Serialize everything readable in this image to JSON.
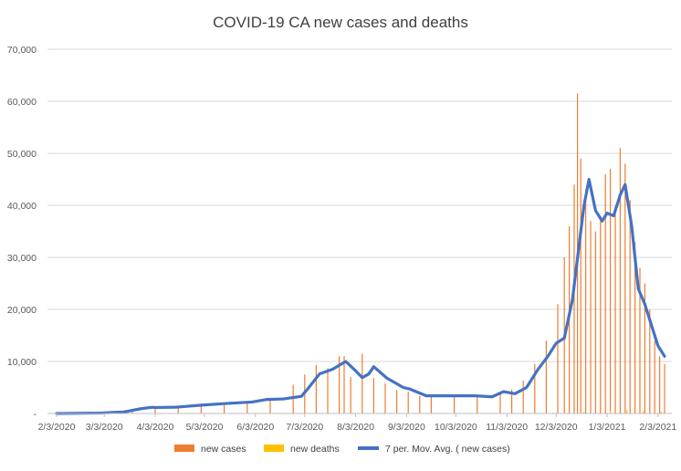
{
  "chart_data": {
    "type": "bar",
    "title": "COVID-19 CA new cases and deaths",
    "xlabel": "",
    "ylabel": "",
    "ylim": [
      0,
      70000
    ],
    "y_ticks": [
      "-",
      "10,000",
      "20,000",
      "30,000",
      "40,000",
      "50,000",
      "60,000",
      "70,000"
    ],
    "y_tick_values": [
      0,
      10000,
      20000,
      30000,
      40000,
      50000,
      60000,
      70000
    ],
    "x_tick_labels": [
      "2/3/2020",
      "3/3/2020",
      "4/3/2020",
      "5/3/2020",
      "6/3/2020",
      "7/3/2020",
      "8/3/2020",
      "9/3/2020",
      "10/3/2020",
      "11/3/2020",
      "12/3/2020",
      "1/3/2021",
      "2/3/2021"
    ],
    "x_tick_dates": [
      "2020-02-03",
      "2020-03-03",
      "2020-04-03",
      "2020-05-03",
      "2020-06-03",
      "2020-07-03",
      "2020-08-03",
      "2020-09-03",
      "2020-10-03",
      "2020-11-03",
      "2020-12-03",
      "2021-01-03",
      "2021-02-03"
    ],
    "x_range": [
      "2020-02-03",
      "2021-02-07"
    ],
    "grid": true,
    "legend_position": "bottom",
    "series": [
      {
        "name": "new cases",
        "type": "bar",
        "color": "#ED7D31",
        "x": [
          "2020-03-20",
          "2020-04-03",
          "2020-04-17",
          "2020-05-01",
          "2020-05-15",
          "2020-05-29",
          "2020-06-12",
          "2020-06-26",
          "2020-07-03",
          "2020-07-10",
          "2020-07-17",
          "2020-07-24",
          "2020-07-27",
          "2020-07-31",
          "2020-08-07",
          "2020-08-14",
          "2020-08-21",
          "2020-08-28",
          "2020-09-04",
          "2020-09-11",
          "2020-09-18",
          "2020-10-02",
          "2020-10-16",
          "2020-10-30",
          "2020-11-06",
          "2020-11-13",
          "2020-11-20",
          "2020-11-27",
          "2020-12-04",
          "2020-12-08",
          "2020-12-11",
          "2020-12-14",
          "2020-12-16",
          "2020-12-18",
          "2020-12-21",
          "2020-12-24",
          "2020-12-27",
          "2020-12-30",
          "2021-01-02",
          "2021-01-05",
          "2021-01-08",
          "2021-01-11",
          "2021-01-14",
          "2021-01-17",
          "2021-01-20",
          "2021-01-23",
          "2021-01-26",
          "2021-01-29",
          "2021-02-01",
          "2021-02-04",
          "2021-02-07"
        ],
        "values": [
          700,
          1200,
          1300,
          1900,
          1700,
          2100,
          2800,
          5500,
          7500,
          9300,
          8700,
          11000,
          11000,
          7000,
          11500,
          6800,
          5800,
          4500,
          4200,
          3400,
          3300,
          3500,
          3300,
          4200,
          4600,
          6300,
          9500,
          14000,
          21000,
          30000,
          36000,
          44000,
          61500,
          49000,
          43000,
          37000,
          35000,
          38000,
          46000,
          47000,
          40000,
          51000,
          48000,
          41000,
          33000,
          28000,
          25000,
          20000,
          14000,
          11000,
          9500
        ]
      },
      {
        "name": "new deaths",
        "type": "bar",
        "color": "#FFC000",
        "x": [
          "2020-04-15",
          "2020-06-15",
          "2020-08-01",
          "2020-10-01",
          "2020-12-01",
          "2020-12-20",
          "2021-01-05",
          "2021-01-15",
          "2021-01-25",
          "2021-02-05"
        ],
        "values": [
          60,
          70,
          130,
          80,
          150,
          350,
          550,
          650,
          500,
          350
        ]
      },
      {
        "name": "7 per. Mov. Avg. ( new cases)",
        "type": "line",
        "color": "#4472C4",
        "x": [
          "2020-02-03",
          "2020-03-01",
          "2020-03-15",
          "2020-03-25",
          "2020-04-01",
          "2020-04-03",
          "2020-04-15",
          "2020-05-01",
          "2020-05-15",
          "2020-06-01",
          "2020-06-10",
          "2020-06-20",
          "2020-07-01",
          "2020-07-05",
          "2020-07-12",
          "2020-07-20",
          "2020-07-28",
          "2020-08-02",
          "2020-08-07",
          "2020-08-11",
          "2020-08-14",
          "2020-08-22",
          "2020-09-01",
          "2020-09-05",
          "2020-09-15",
          "2020-10-01",
          "2020-10-15",
          "2020-10-25",
          "2020-11-01",
          "2020-11-08",
          "2020-11-15",
          "2020-11-22",
          "2020-11-28",
          "2020-12-03",
          "2020-12-08",
          "2020-12-13",
          "2020-12-18",
          "2020-12-20",
          "2020-12-23",
          "2020-12-27",
          "2020-12-31",
          "2021-01-03",
          "2021-01-07",
          "2021-01-11",
          "2021-01-14",
          "2021-01-18",
          "2021-01-22",
          "2021-01-26",
          "2021-01-30",
          "2021-02-03",
          "2021-02-07"
        ],
        "values": [
          0,
          100,
          300,
          900,
          1200,
          1150,
          1200,
          1600,
          1900,
          2200,
          2700,
          2800,
          3300,
          4800,
          7600,
          8500,
          10000,
          8500,
          6900,
          7600,
          9000,
          6800,
          5000,
          4700,
          3400,
          3400,
          3400,
          3200,
          4200,
          3800,
          5000,
          8500,
          11000,
          13500,
          14500,
          22000,
          35000,
          40000,
          45000,
          39000,
          37000,
          38500,
          38000,
          42000,
          44000,
          36000,
          24000,
          21000,
          17000,
          13000,
          11000
        ]
      }
    ]
  }
}
